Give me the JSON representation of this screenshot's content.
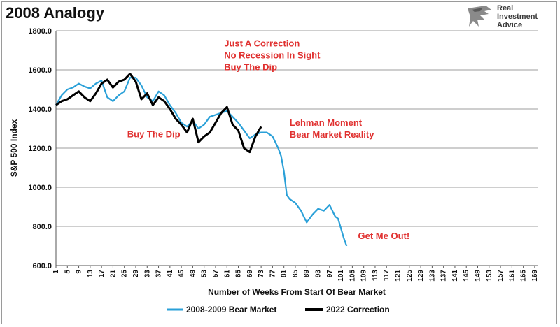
{
  "chart_data": {
    "type": "line",
    "title": "2008 Analogy",
    "xlabel": "Number of Weeks From Start Of Bear Market",
    "ylabel": "S&P 500 Index",
    "xlim": [
      1,
      170
    ],
    "ylim": [
      600,
      1800
    ],
    "yticks": [
      "600.0",
      "800.0",
      "1000.0",
      "1200.0",
      "1400.0",
      "1600.0",
      "1800.0"
    ],
    "xtick_step": 4,
    "grid": "horizontal",
    "legend_position": "bottom",
    "series": [
      {
        "name": "2008-2009 Bear Market",
        "color": "#2aa0d8",
        "x": [
          1,
          3,
          5,
          7,
          9,
          11,
          13,
          15,
          17,
          19,
          21,
          23,
          25,
          27,
          29,
          31,
          33,
          35,
          37,
          39,
          41,
          43,
          45,
          47,
          49,
          51,
          53,
          55,
          57,
          59,
          61,
          63,
          65,
          67,
          69,
          71,
          73,
          75,
          77,
          79,
          80,
          81,
          82,
          83,
          85,
          87,
          89,
          91,
          93,
          95,
          97,
          99,
          100,
          101,
          102,
          103
        ],
        "y": [
          1420,
          1470,
          1500,
          1510,
          1530,
          1515,
          1505,
          1530,
          1545,
          1460,
          1440,
          1470,
          1490,
          1560,
          1560,
          1520,
          1460,
          1440,
          1490,
          1470,
          1420,
          1380,
          1330,
          1310,
          1340,
          1300,
          1320,
          1360,
          1370,
          1380,
          1390,
          1360,
          1330,
          1290,
          1250,
          1270,
          1280,
          1280,
          1260,
          1200,
          1160,
          1080,
          960,
          940,
          920,
          880,
          820,
          860,
          890,
          880,
          910,
          850,
          840,
          790,
          740,
          700
        ]
      },
      {
        "name": "2022 Correction",
        "color": "#000000",
        "x": [
          1,
          3,
          5,
          7,
          9,
          11,
          13,
          15,
          17,
          19,
          21,
          23,
          25,
          27,
          29,
          31,
          33,
          35,
          37,
          39,
          41,
          43,
          45,
          47,
          49,
          51,
          53,
          55,
          57,
          59,
          61,
          63,
          65,
          67,
          69,
          71,
          73
        ],
        "y": [
          1420,
          1440,
          1450,
          1470,
          1490,
          1460,
          1440,
          1480,
          1530,
          1550,
          1510,
          1540,
          1550,
          1580,
          1540,
          1450,
          1480,
          1420,
          1460,
          1440,
          1400,
          1350,
          1320,
          1280,
          1350,
          1230,
          1260,
          1280,
          1330,
          1380,
          1410,
          1320,
          1290,
          1200,
          1180,
          1260,
          1310
        ]
      }
    ],
    "annotations": [
      {
        "lines": [
          "Just A Correction",
          "No Recession In Sight",
          "Buy The Dip"
        ],
        "x": 60,
        "y": 1720
      },
      {
        "lines": [
          "Buy The Dip"
        ],
        "x": 26,
        "y": 1255
      },
      {
        "lines": [
          "Lehman Moment",
          "Bear Market Reality"
        ],
        "x": 83,
        "y": 1315
      },
      {
        "lines": [
          "Get Me Out!"
        ],
        "x": 107,
        "y": 735
      }
    ]
  },
  "logo": {
    "lines": [
      "Real",
      "Investment",
      "Advice"
    ]
  }
}
